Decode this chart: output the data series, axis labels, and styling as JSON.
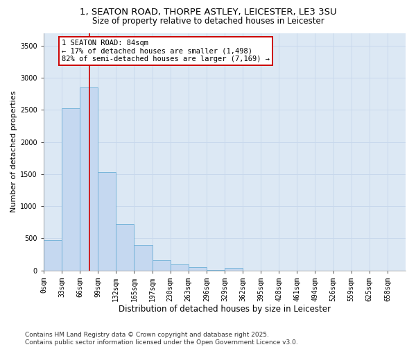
{
  "title_line1": "1, SEATON ROAD, THORPE ASTLEY, LEICESTER, LE3 3SU",
  "title_line2": "Size of property relative to detached houses in Leicester",
  "xlabel": "Distribution of detached houses by size in Leicester",
  "ylabel": "Number of detached properties",
  "bar_values": [
    470,
    2530,
    2850,
    1530,
    720,
    400,
    155,
    90,
    50,
    5,
    45,
    0,
    0,
    0,
    0,
    0,
    0,
    0,
    0,
    0
  ],
  "bin_labels": [
    "0sqm",
    "33sqm",
    "66sqm",
    "99sqm",
    "132sqm",
    "165sqm",
    "197sqm",
    "230sqm",
    "263sqm",
    "296sqm",
    "329sqm",
    "362sqm",
    "395sqm",
    "428sqm",
    "461sqm",
    "494sqm",
    "526sqm",
    "559sqm",
    "625sqm",
    "658sqm"
  ],
  "bar_color": "#c5d8f0",
  "bar_edge_color": "#6baed6",
  "vline_x": 2.54,
  "vline_color": "#cc0000",
  "annotation_text": "1 SEATON ROAD: 84sqm\n← 17% of detached houses are smaller (1,498)\n82% of semi-detached houses are larger (7,169) →",
  "annotation_box_color": "#cc0000",
  "annotation_bg": "white",
  "ylim": [
    0,
    3700
  ],
  "yticks": [
    0,
    500,
    1000,
    1500,
    2000,
    2500,
    3000,
    3500
  ],
  "grid_color": "#c8d8ec",
  "bg_color": "#dce8f4",
  "footnote": "Contains HM Land Registry data © Crown copyright and database right 2025.\nContains public sector information licensed under the Open Government Licence v3.0.",
  "title_fontsize": 9.5,
  "subtitle_fontsize": 8.5,
  "xlabel_fontsize": 8.5,
  "ylabel_fontsize": 8.0,
  "tick_fontsize": 7.0,
  "annot_fontsize": 7.5,
  "footnote_fontsize": 6.5
}
